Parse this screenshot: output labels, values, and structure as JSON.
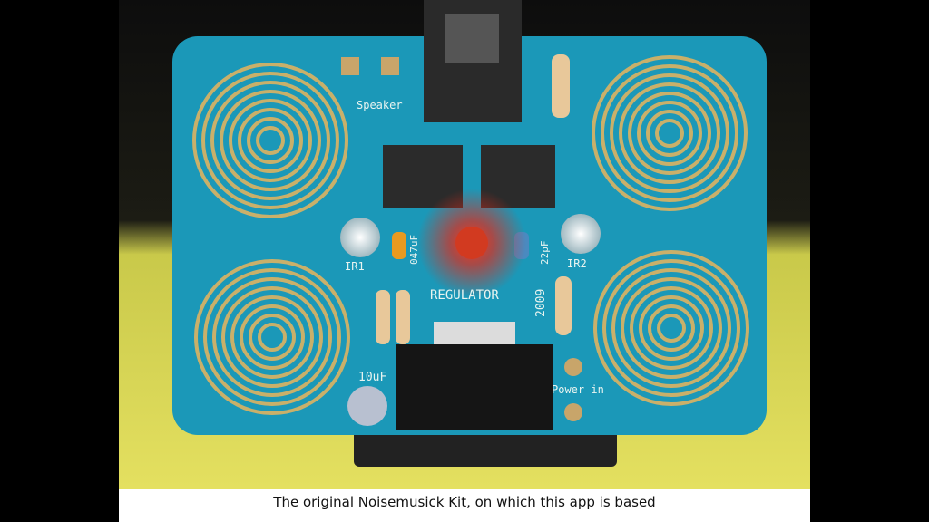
{
  "caption": "The original Noisemusick Kit, on which this app is based",
  "board_labels": {
    "speaker": "Speaker",
    "ir1": "IR1",
    "ir2": "IR2",
    "regulator": "REGULATOR",
    "cap_10uf": "10uF",
    "power_in": "Power in",
    "cap_047uf": "047uF",
    "cap_22pf": "22pF",
    "year": "2009"
  }
}
